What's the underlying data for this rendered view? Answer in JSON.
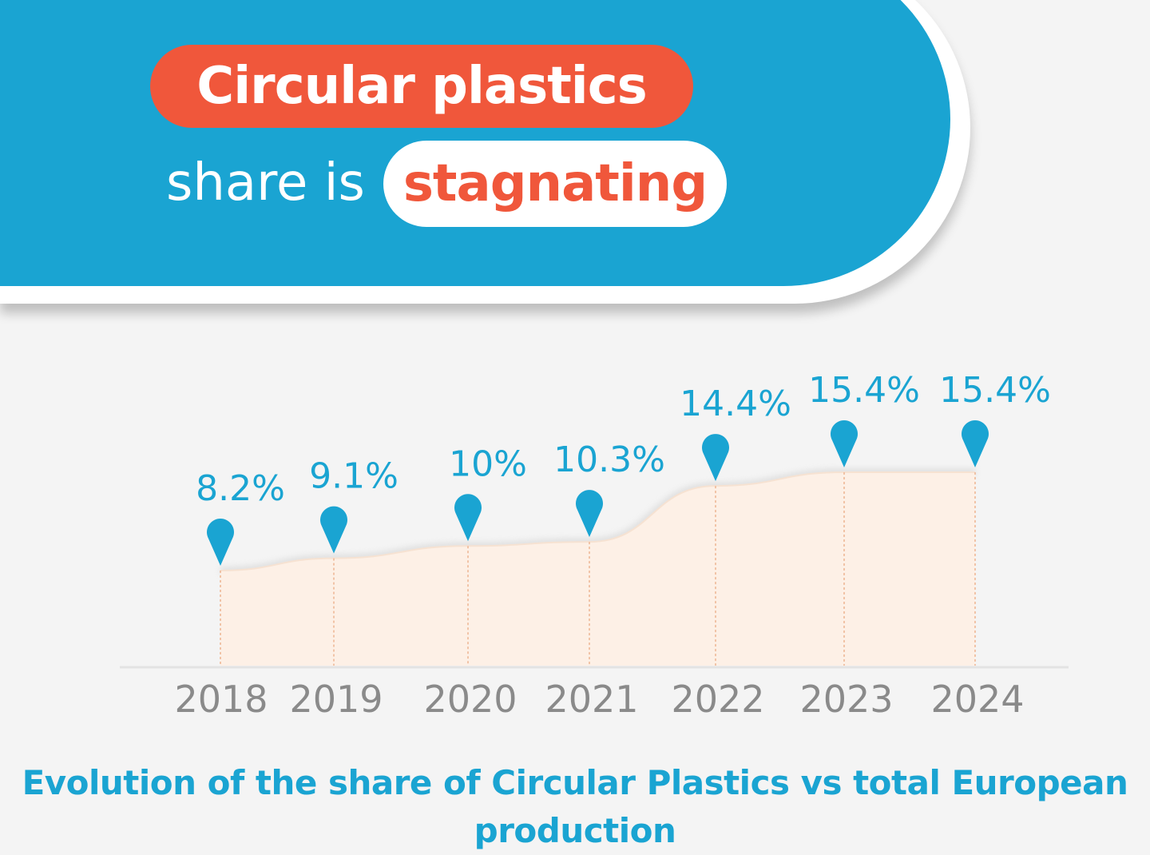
{
  "header": {
    "title": "Circular plastics",
    "subtitle_prefix": "share is",
    "subtitle_highlight": "stagnating"
  },
  "colors": {
    "blue": "#1aa4d2",
    "orange": "#f0573b",
    "area_fill": "#fdf0e6",
    "axis_label": "#8a8a8a"
  },
  "chart_data": {
    "type": "area",
    "categories": [
      "2018",
      "2019",
      "2020",
      "2021",
      "2022",
      "2023",
      "2024"
    ],
    "values": [
      8.2,
      9.1,
      10,
      10.3,
      14.4,
      15.4,
      15.4
    ],
    "value_labels": [
      "8.2%",
      "9.1%",
      "10%",
      "10.3%",
      "14.4%",
      "15.4%",
      "15.4%"
    ],
    "unit": "%",
    "caption": "Evolution of the share of Circular Plastics vs total European production",
    "xlabel": "",
    "ylabel": "",
    "grid": false,
    "legend": "none"
  }
}
